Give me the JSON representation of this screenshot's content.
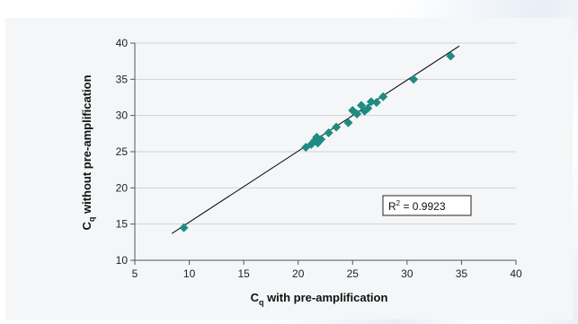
{
  "chart_data": {
    "type": "scatter",
    "xlabel_main": "C",
    "xlabel_sub": "q",
    "xlabel_rest": " with pre-amplification",
    "ylabel_main": "C",
    "ylabel_sub": "q",
    "ylabel_rest": " without pre-amplification",
    "xlim": [
      5,
      40
    ],
    "ylim": [
      10,
      40
    ],
    "xticks": [
      5,
      10,
      15,
      20,
      25,
      30,
      35,
      40
    ],
    "yticks": [
      10,
      15,
      20,
      25,
      30,
      35,
      40
    ],
    "grid": "horizontal",
    "marker_color": "#1e8c82",
    "line_color": "#111111",
    "points": [
      {
        "x": 9.5,
        "y": 14.5
      },
      {
        "x": 20.7,
        "y": 25.6
      },
      {
        "x": 21.2,
        "y": 26.0
      },
      {
        "x": 21.5,
        "y": 26.5
      },
      {
        "x": 21.8,
        "y": 26.2
      },
      {
        "x": 21.7,
        "y": 27.0
      },
      {
        "x": 22.1,
        "y": 26.7
      },
      {
        "x": 22.8,
        "y": 27.6
      },
      {
        "x": 23.5,
        "y": 28.4
      },
      {
        "x": 24.6,
        "y": 29.0
      },
      {
        "x": 25.0,
        "y": 30.7
      },
      {
        "x": 25.4,
        "y": 30.2
      },
      {
        "x": 25.8,
        "y": 31.4
      },
      {
        "x": 26.1,
        "y": 30.6
      },
      {
        "x": 26.4,
        "y": 31.0
      },
      {
        "x": 26.7,
        "y": 31.9
      },
      {
        "x": 27.2,
        "y": 31.8
      },
      {
        "x": 27.8,
        "y": 32.6
      },
      {
        "x": 30.6,
        "y": 35.0
      },
      {
        "x": 34.0,
        "y": 38.2
      }
    ],
    "trendline": {
      "x": [
        8.4,
        34.8
      ],
      "y": [
        13.7,
        39.6
      ]
    },
    "annotation": {
      "text_main": "R",
      "text_sup": "2",
      "text_rest": " = 0.9923"
    }
  }
}
